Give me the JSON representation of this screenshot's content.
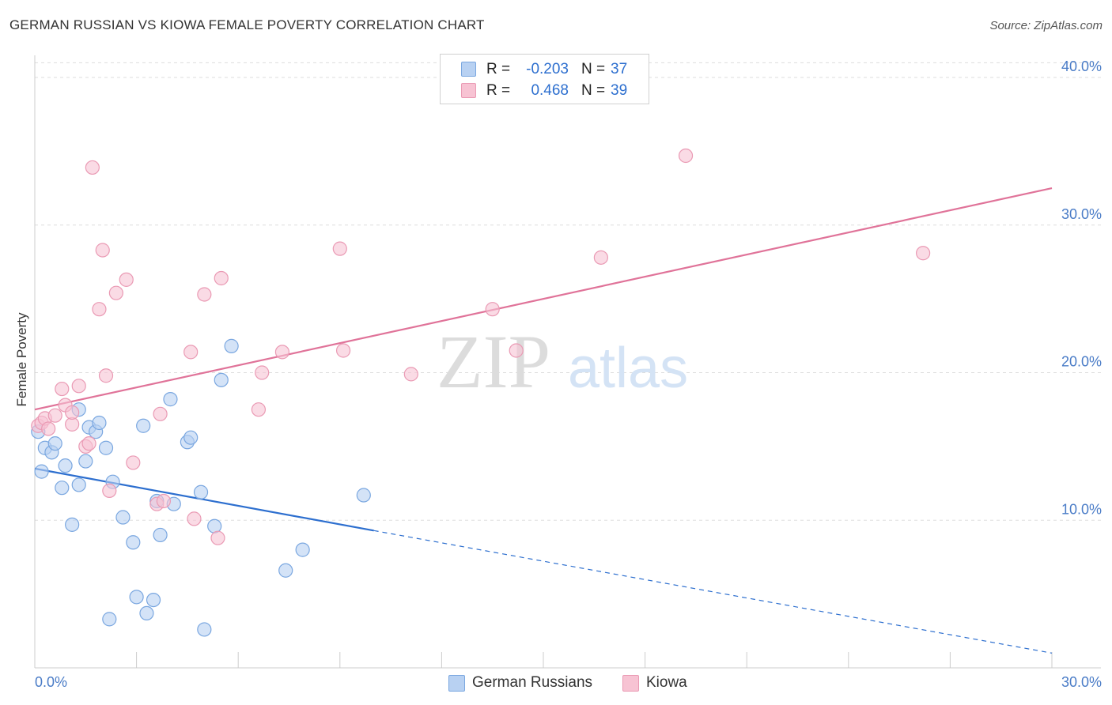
{
  "title": "GERMAN RUSSIAN VS KIOWA FEMALE POVERTY CORRELATION CHART",
  "source": "Source: ZipAtlas.com",
  "watermark": {
    "zip": "ZIP",
    "atlas": "atlas"
  },
  "colors": {
    "blue_fill": "#b8d1f2",
    "blue_stroke": "#7aa7e0",
    "blue_line": "#2d6fcf",
    "pink_fill": "#f7c3d3",
    "pink_stroke": "#ea9ab4",
    "pink_line": "#e07399",
    "tick_text": "#4a7cc7",
    "grid": "#dddddd"
  },
  "stats": [
    {
      "series": "German Russians",
      "r_label": "R =",
      "r_value": "-0.203",
      "n_label": "N =",
      "n_value": "37"
    },
    {
      "series": "Kiowa",
      "r_label": "R =",
      "r_value": "0.468",
      "n_label": "N =",
      "n_value": "39"
    }
  ],
  "chart_data": {
    "type": "scatter",
    "title": "GERMAN RUSSIAN VS KIOWA FEMALE POVERTY CORRELATION CHART",
    "xlabel": "",
    "ylabel": "Female Poverty",
    "xlim": [
      0,
      30
    ],
    "ylim": [
      0,
      41.5
    ],
    "x_tick_labels": [
      {
        "value": 0,
        "label": "0.0%"
      },
      {
        "value": 30,
        "label": "30.0%"
      }
    ],
    "y_tick_labels": [
      {
        "value": 10,
        "label": "10.0%"
      },
      {
        "value": 20,
        "label": "20.0%"
      },
      {
        "value": 30,
        "label": "30.0%"
      },
      {
        "value": 40,
        "label": "40.0%"
      }
    ],
    "x_minor_ticks": [
      3,
      6,
      9,
      12,
      15,
      18,
      21,
      24,
      27,
      30
    ],
    "grid": true,
    "legend_position": "bottom-center",
    "series": [
      {
        "name": "German Russians",
        "color": "blue",
        "points": [
          [
            0.1,
            16.0
          ],
          [
            0.2,
            13.3
          ],
          [
            0.3,
            14.9
          ],
          [
            0.5,
            14.6
          ],
          [
            0.6,
            15.2
          ],
          [
            0.8,
            12.2
          ],
          [
            0.9,
            13.7
          ],
          [
            1.1,
            9.7
          ],
          [
            1.3,
            17.5
          ],
          [
            1.3,
            12.4
          ],
          [
            1.5,
            14.0
          ],
          [
            1.6,
            16.3
          ],
          [
            1.8,
            16.0
          ],
          [
            1.9,
            16.6
          ],
          [
            2.1,
            14.9
          ],
          [
            2.2,
            3.3
          ],
          [
            2.3,
            12.6
          ],
          [
            2.6,
            10.2
          ],
          [
            2.9,
            8.5
          ],
          [
            3.0,
            4.8
          ],
          [
            3.2,
            16.4
          ],
          [
            3.3,
            3.7
          ],
          [
            3.5,
            4.6
          ],
          [
            3.6,
            11.3
          ],
          [
            3.7,
            9.0
          ],
          [
            4.0,
            18.2
          ],
          [
            4.1,
            11.1
          ],
          [
            4.5,
            15.3
          ],
          [
            4.6,
            15.6
          ],
          [
            4.9,
            11.9
          ],
          [
            5.0,
            2.6
          ],
          [
            5.3,
            9.6
          ],
          [
            5.5,
            19.5
          ],
          [
            5.8,
            21.8
          ],
          [
            7.4,
            6.6
          ],
          [
            7.9,
            8.0
          ],
          [
            9.7,
            11.7
          ]
        ],
        "trend": {
          "x0": 0,
          "y0": 13.5,
          "x1": 10.0,
          "y1": 9.3,
          "dashed_to_x": 30,
          "dashed_to_y": 1.0
        }
      },
      {
        "name": "Kiowa",
        "color": "pink",
        "points": [
          [
            0.1,
            16.4
          ],
          [
            0.2,
            16.6
          ],
          [
            0.3,
            16.9
          ],
          [
            0.4,
            16.2
          ],
          [
            0.6,
            17.1
          ],
          [
            0.8,
            18.9
          ],
          [
            0.9,
            17.8
          ],
          [
            1.1,
            16.5
          ],
          [
            1.1,
            17.3
          ],
          [
            1.3,
            19.1
          ],
          [
            1.5,
            15.0
          ],
          [
            1.6,
            15.2
          ],
          [
            1.7,
            33.9
          ],
          [
            1.9,
            24.3
          ],
          [
            2.0,
            28.3
          ],
          [
            2.1,
            19.8
          ],
          [
            2.2,
            12.0
          ],
          [
            2.4,
            25.4
          ],
          [
            2.7,
            26.3
          ],
          [
            2.9,
            13.9
          ],
          [
            3.6,
            11.1
          ],
          [
            3.7,
            17.2
          ],
          [
            3.8,
            11.3
          ],
          [
            4.6,
            21.4
          ],
          [
            4.7,
            10.1
          ],
          [
            5.0,
            25.3
          ],
          [
            5.4,
            8.8
          ],
          [
            5.5,
            26.4
          ],
          [
            6.6,
            17.5
          ],
          [
            6.7,
            20.0
          ],
          [
            7.3,
            21.4
          ],
          [
            9.0,
            28.4
          ],
          [
            9.1,
            21.5
          ],
          [
            11.1,
            19.9
          ],
          [
            13.5,
            24.3
          ],
          [
            14.2,
            21.5
          ],
          [
            16.7,
            27.8
          ],
          [
            19.2,
            34.7
          ],
          [
            26.2,
            28.1
          ]
        ],
        "trend": {
          "x0": 0,
          "y0": 17.5,
          "x1": 30,
          "y1": 32.5
        }
      }
    ]
  }
}
